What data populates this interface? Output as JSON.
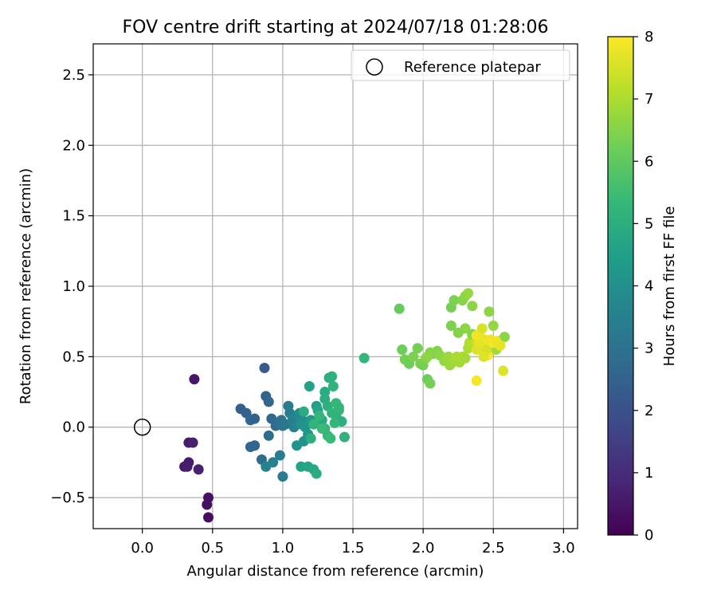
{
  "chart_data": {
    "type": "scatter",
    "title": "FOV centre drift starting at 2024/07/18 01:28:06",
    "xlabel": "Angular distance from reference (arcmin)",
    "ylabel": "Rotation from reference (arcmin)",
    "xlim": [
      -0.35,
      3.1
    ],
    "ylim": [
      -0.72,
      2.72
    ],
    "x_ticks": [
      0.0,
      0.5,
      1.0,
      1.5,
      2.0,
      2.5,
      3.0
    ],
    "x_tick_labels": [
      "0.0",
      "0.5",
      "1.0",
      "1.5",
      "2.0",
      "2.5",
      "3.0"
    ],
    "y_ticks": [
      -0.5,
      0.0,
      0.5,
      1.0,
      1.5,
      2.0,
      2.5
    ],
    "y_tick_labels": [
      "−0.5",
      "0.0",
      "0.5",
      "1.0",
      "1.5",
      "2.0",
      "2.5"
    ],
    "grid": true,
    "legend": {
      "placement": "top-right",
      "entries": [
        "Reference platepar"
      ]
    },
    "reference_point": {
      "x": 0.0,
      "y": 0.0,
      "label": "Reference platepar"
    },
    "colorbar": {
      "label": "Hours from first FF file",
      "colormap": "viridis",
      "range": [
        0,
        8
      ],
      "ticks": [
        0,
        1,
        2,
        3,
        4,
        5,
        6,
        7,
        8
      ],
      "tick_labels": [
        "0",
        "1",
        "2",
        "3",
        "4",
        "5",
        "6",
        "7",
        "8"
      ],
      "stops": [
        "#440154",
        "#482878",
        "#3e4989",
        "#31688e",
        "#26828e",
        "#1f9e89",
        "#35b779",
        "#6ece58",
        "#b5de2b",
        "#fde725"
      ]
    },
    "point_series": {
      "name": "FOV centre",
      "x": [
        0.37,
        0.33,
        0.36,
        0.3,
        0.33,
        0.32,
        0.4,
        0.47,
        0.46,
        0.47,
        0.87,
        0.7,
        0.74,
        0.77,
        0.8,
        0.77,
        0.8,
        0.85,
        0.88,
        0.9,
        0.92,
        0.95,
        0.9,
        0.88,
        0.93,
        0.98,
        1.0,
        0.99,
        1.0,
        1.02,
        1.04,
        1.05,
        1.07,
        1.08,
        1.1,
        1.12,
        1.14,
        1.13,
        1.16,
        1.18,
        1.2,
        1.15,
        1.1,
        1.13,
        1.18,
        1.22,
        1.24,
        1.24,
        1.19,
        1.25,
        1.28,
        1.3,
        1.3,
        1.32,
        1.33,
        1.35,
        1.36,
        1.38,
        1.4,
        1.38,
        1.4,
        1.42,
        1.44,
        1.35,
        1.37,
        1.3,
        1.32,
        1.34,
        1.26,
        1.28,
        1.22,
        1.2,
        1.15,
        1.58,
        1.83,
        1.85,
        1.87,
        1.9,
        1.93,
        1.96,
        1.98,
        2.0,
        2.02,
        2.03,
        2.05,
        2.07,
        2.05,
        2.03,
        2.1,
        2.12,
        2.15,
        2.18,
        2.19,
        2.2,
        2.22,
        2.24,
        2.26,
        2.28,
        2.3,
        2.32,
        2.33,
        2.35,
        2.37,
        2.38,
        2.47,
        2.5,
        2.52,
        2.54,
        2.58,
        2.4,
        2.35,
        2.3,
        2.25,
        2.2,
        2.2,
        2.22,
        2.28,
        2.3,
        2.32,
        2.35,
        2.38,
        2.4,
        2.42,
        2.44,
        2.46,
        2.38,
        2.43,
        2.44,
        2.48,
        2.5,
        2.52,
        2.55,
        2.57,
        2.45,
        2.43,
        2.4,
        2.38
      ],
      "y": [
        0.34,
        -0.11,
        -0.11,
        -0.28,
        -0.25,
        -0.28,
        -0.3,
        -0.5,
        -0.55,
        -0.64,
        0.42,
        0.13,
        0.1,
        0.05,
        0.06,
        -0.14,
        -0.13,
        -0.23,
        0.22,
        0.18,
        0.06,
        0.01,
        -0.06,
        -0.28,
        -0.25,
        -0.2,
        -0.35,
        0.05,
        0.01,
        0.02,
        0.15,
        0.1,
        0.05,
        0.0,
        0.08,
        0.1,
        0.05,
        0.02,
        0.0,
        -0.05,
        0.05,
        -0.1,
        -0.13,
        -0.28,
        -0.28,
        -0.3,
        -0.33,
        0.15,
        0.29,
        0.12,
        0.05,
        0.25,
        0.2,
        0.15,
        0.35,
        0.36,
        0.29,
        0.17,
        0.12,
        0.08,
        0.14,
        0.04,
        -0.07,
        0.1,
        0.03,
        -0.01,
        -0.06,
        -0.08,
        0.08,
        -0.01,
        0.02,
        -0.08,
        0.11,
        0.49,
        0.84,
        0.55,
        0.48,
        0.45,
        0.5,
        0.56,
        0.45,
        0.44,
        0.49,
        0.34,
        0.31,
        0.52,
        0.53,
        0.5,
        0.54,
        0.51,
        0.47,
        0.5,
        0.44,
        0.45,
        0.48,
        0.5,
        0.46,
        0.5,
        0.49,
        0.56,
        0.6,
        0.65,
        0.62,
        0.6,
        0.82,
        0.72,
        0.55,
        0.61,
        0.64,
        0.62,
        0.66,
        0.7,
        0.67,
        0.72,
        0.85,
        0.9,
        0.9,
        0.93,
        0.95,
        0.86,
        0.55,
        0.66,
        0.7,
        0.62,
        0.51,
        0.33,
        0.6,
        0.55,
        0.62,
        0.6,
        0.61,
        0.58,
        0.4,
        0.55,
        0.5,
        0.6,
        0.65
      ],
      "hours": [
        0.5,
        0.6,
        0.7,
        0.55,
        0.6,
        0.65,
        0.7,
        0.4,
        0.35,
        0.3,
        2.3,
        2.4,
        2.5,
        2.6,
        2.5,
        2.7,
        2.6,
        2.8,
        2.5,
        2.6,
        2.7,
        2.8,
        2.9,
        3.6,
        3.5,
        3.4,
        3.3,
        3.0,
        3.1,
        3.2,
        3.3,
        3.4,
        3.5,
        3.6,
        3.7,
        3.8,
        3.9,
        4.0,
        4.1,
        4.2,
        4.3,
        4.0,
        4.1,
        4.6,
        4.7,
        4.8,
        4.9,
        4.5,
        4.6,
        4.7,
        4.8,
        4.9,
        5.0,
        5.1,
        5.0,
        5.1,
        5.2,
        5.3,
        5.4,
        5.2,
        5.3,
        5.0,
        5.1,
        5.2,
        5.3,
        5.2,
        5.3,
        5.4,
        5.3,
        5.4,
        5.2,
        5.0,
        4.9,
        5.3,
        6.1,
        6.2,
        6.3,
        6.2,
        6.4,
        6.3,
        6.4,
        6.3,
        6.5,
        6.2,
        6.3,
        6.4,
        6.5,
        6.6,
        6.5,
        6.6,
        6.7,
        6.8,
        6.7,
        6.8,
        6.9,
        7.0,
        6.9,
        7.0,
        6.9,
        7.0,
        7.1,
        7.0,
        7.2,
        7.3,
        6.6,
        6.7,
        6.9,
        6.5,
        6.6,
        6.4,
        6.5,
        6.6,
        6.5,
        6.4,
        6.3,
        6.4,
        6.5,
        6.6,
        6.7,
        6.6,
        7.6,
        7.8,
        7.5,
        7.7,
        8.0,
        7.9,
        7.8,
        7.7,
        7.8,
        7.9,
        7.8,
        7.7,
        7.6,
        7.5,
        7.6,
        7.7,
        7.8
      ]
    }
  }
}
